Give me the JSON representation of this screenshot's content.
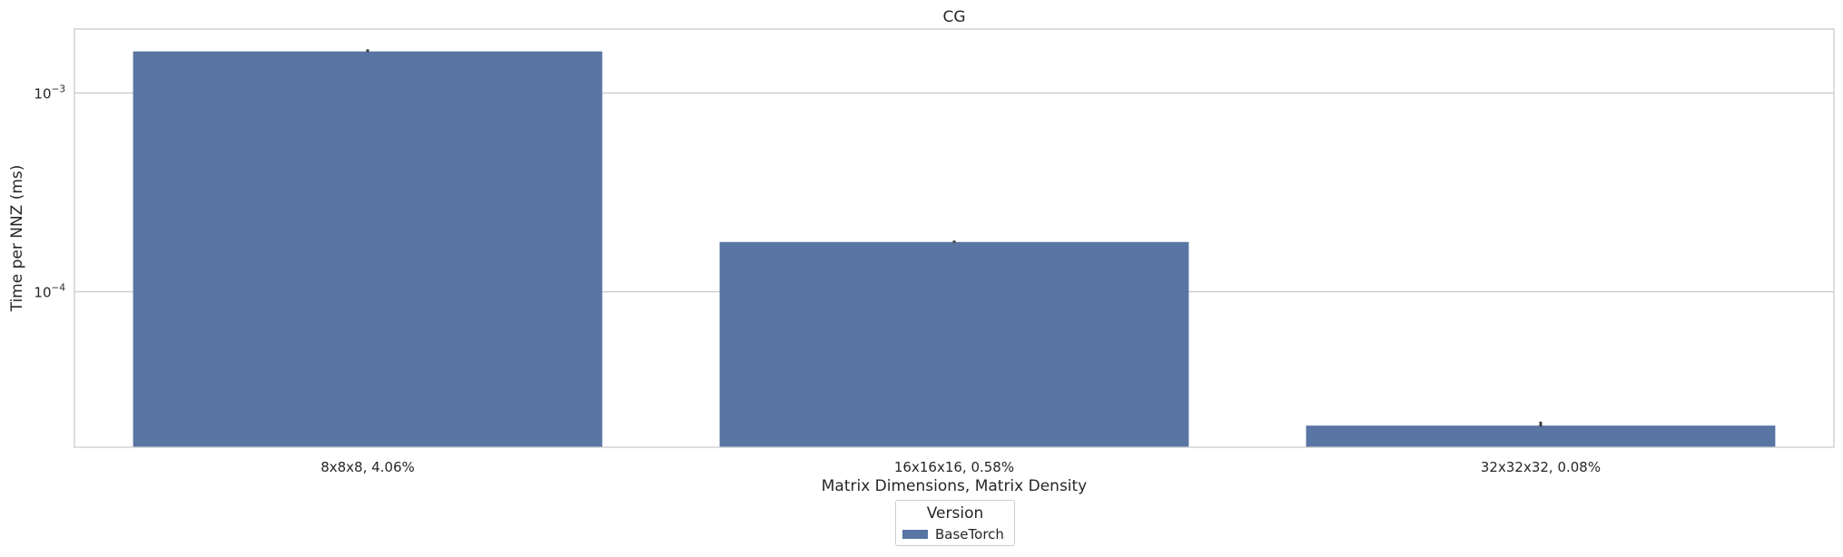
{
  "chart_data": {
    "type": "bar",
    "title": "CG",
    "xlabel": "Matrix Dimensions, Matrix Density",
    "ylabel": "Time per NNZ (ms)",
    "yscale": "log",
    "ylim": [
      1.65e-05,
      0.0021
    ],
    "grid": true,
    "categories": [
      "8x8x8, 4.06%",
      "16x16x16, 0.58%",
      "32x32x32, 0.08%"
    ],
    "series": [
      {
        "name": "BaseTorch",
        "color": "#5975a4",
        "values": [
          0.00162,
          0.000178,
          2.12e-05
        ],
        "error_high": [
          0.00166,
          0.000181,
          2.22e-05
        ]
      }
    ],
    "yticks": [
      {
        "value": 0.001,
        "base": "10",
        "exp": "−3"
      },
      {
        "value": 0.0001,
        "base": "10",
        "exp": "−4"
      }
    ],
    "legend": {
      "title": "Version",
      "placement": "bottom-center"
    }
  }
}
